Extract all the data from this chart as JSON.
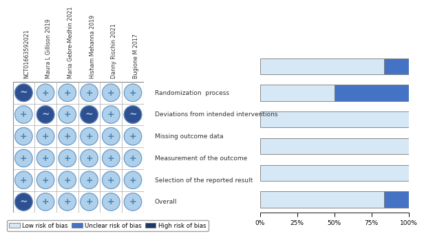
{
  "studies": [
    "NCT01663592021",
    "Maura L Gillison 2019",
    "Maria Gebre-Medhin 2021",
    "Hisham Mehanna 2019",
    "Danny Rischin 2021",
    "Bugione M 2017"
  ],
  "domains": [
    "Randomization  process",
    "Deviations from intended interventions",
    "Missing outcome data",
    "Measurement of the outcome",
    "Selection of the reported result",
    "Overall"
  ],
  "legend_labels": [
    "Low risk of bias",
    "Unclear risk of bias",
    "High risk of bias"
  ],
  "legend_colors": [
    "#d6e8f5",
    "#4472c4",
    "#1f3864"
  ],
  "circle_colors": {
    "low": "#aed0ea",
    "unclear": "#2e5090"
  },
  "grid_symbols": [
    [
      "unclear",
      "low",
      "low",
      "low",
      "low",
      "low"
    ],
    [
      "low",
      "unclear",
      "low",
      "unclear",
      "low",
      "unclear"
    ],
    [
      "low",
      "low",
      "low",
      "low",
      "low",
      "low"
    ],
    [
      "low",
      "low",
      "low",
      "low",
      "low",
      "low"
    ],
    [
      "low",
      "low",
      "low",
      "low",
      "low",
      "low"
    ],
    [
      "unclear",
      "low",
      "low",
      "low",
      "low",
      "low"
    ]
  ],
  "bar_data": {
    "low": [
      83.33,
      50.0,
      100.0,
      100.0,
      100.0,
      83.33
    ],
    "unclear": [
      16.67,
      50.0,
      0.0,
      0.0,
      0.0,
      16.67
    ],
    "high": [
      0.0,
      0.0,
      0.0,
      0.0,
      0.0,
      0.0
    ]
  },
  "bar_colors": {
    "low": "#d6e8f5",
    "unclear": "#4472c4",
    "high": "#1f3864"
  },
  "bg_color": "#ffffff",
  "bar_border_color": "#777777",
  "axis_color": "#333333",
  "text_color": "#333333",
  "study_fontsize": 5.8,
  "domain_fontsize": 6.5,
  "legend_fontsize": 6.2,
  "tick_fontsize": 6.5
}
